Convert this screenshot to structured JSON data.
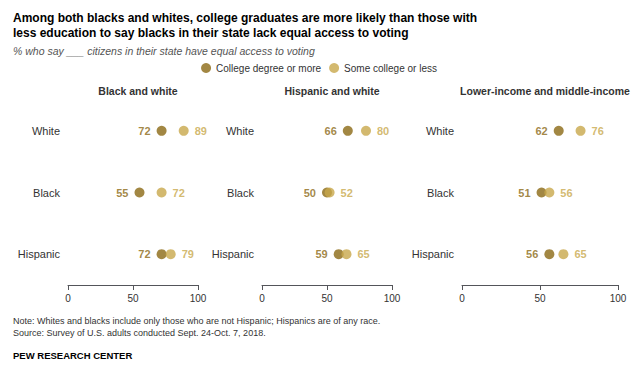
{
  "title": "Among both blacks and whites, college graduates are more likely than those with\nless education to say blacks in their state lack equal access to voting",
  "subtitle": "% who say ___ citizens in their state have equal access to voting",
  "annotations": [
    "Note: Whites and blacks include only those who are not Hispanic; Hispanics are of any race.\nSource: Survey of U.S. adults conducted Sept. 24-Oct. 7, 2018.",
    "PEW RESEARCH CENTER"
  ],
  "legend": "top",
  "chart_data": [
    {
      "type": "scatter",
      "title": "Black and white",
      "categories": [
        "White",
        "Black",
        "Hispanic"
      ],
      "series": [
        {
          "name": "College degree or more",
          "color": "#8B6914",
          "values": [
            72,
            55,
            72
          ]
        },
        {
          "name": "Some college or less",
          "color": "#C8A84B",
          "values": [
            89,
            72,
            79
          ]
        }
      ],
      "xlim": [
        0,
        100
      ],
      "xticks": [
        0,
        50,
        100
      ],
      "grid": false,
      "data_labels": true
    },
    {
      "type": "scatter",
      "title": "Hispanic and white",
      "categories": [
        "White",
        "Black",
        "Hispanic"
      ],
      "series": [
        {
          "name": "College degree or more",
          "color": "#8B6914",
          "values": [
            66,
            50,
            59
          ]
        },
        {
          "name": "Some college or less",
          "color": "#C8A84B",
          "values": [
            80,
            52,
            65
          ]
        }
      ],
      "xlim": [
        0,
        100
      ],
      "xticks": [
        0,
        50,
        100
      ],
      "grid": false,
      "data_labels": true
    },
    {
      "type": "scatter",
      "title": "Lower-income and middle-income",
      "categories": [
        "White",
        "Black",
        "Hispanic"
      ],
      "series": [
        {
          "name": "College degree or more",
          "color": "#8B6914",
          "values": [
            62,
            51,
            56
          ]
        },
        {
          "name": "Some college or less",
          "color": "#C8A84B",
          "values": [
            76,
            56,
            65
          ]
        }
      ],
      "xlim": [
        0,
        100
      ],
      "xticks": [
        0,
        50,
        100
      ],
      "grid": false,
      "data_labels": true
    }
  ]
}
